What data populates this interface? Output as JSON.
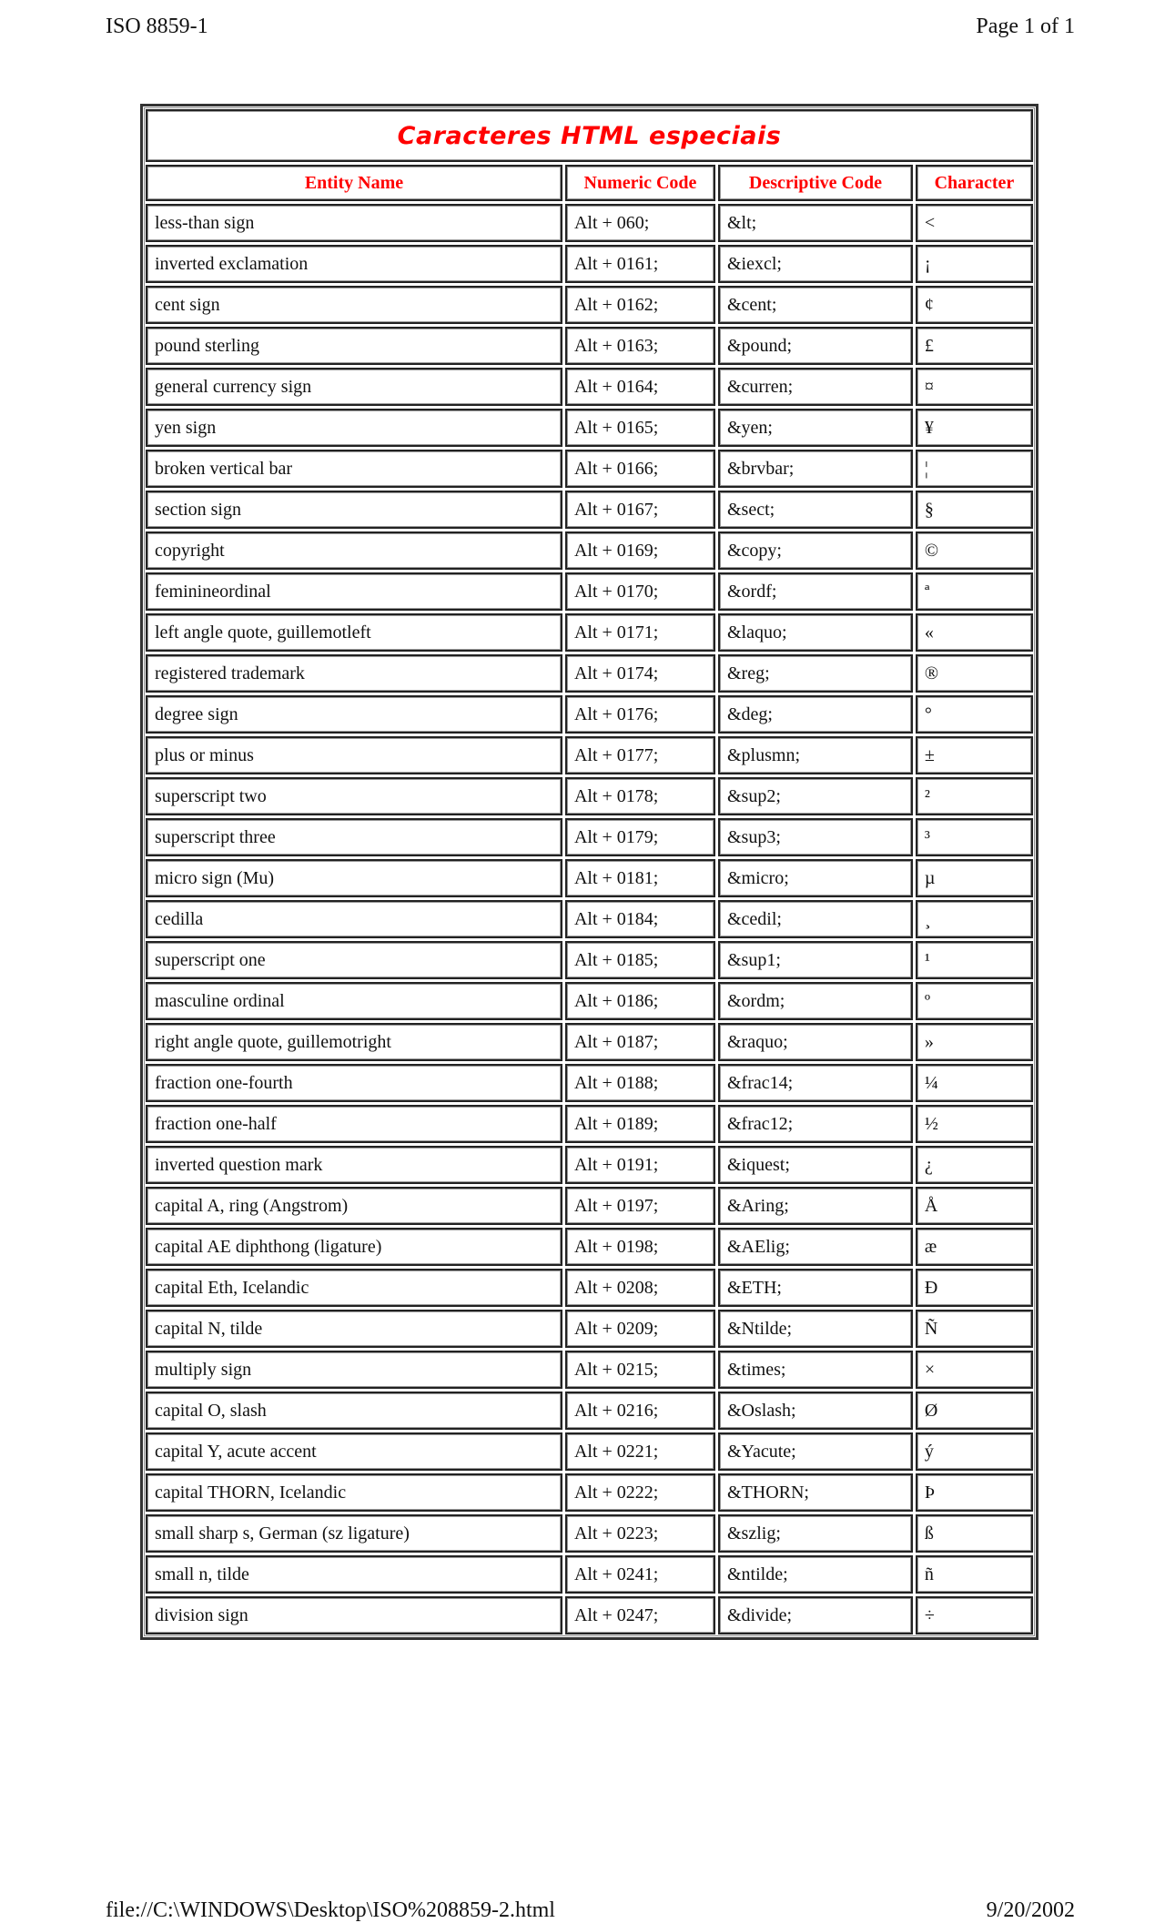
{
  "page_header": {
    "left": "ISO 8859-1",
    "right": "Page 1 of 1"
  },
  "page_footer": {
    "left": "file://C:\\WINDOWS\\Desktop\\ISO%208859-2.html",
    "right": "9/20/2002"
  },
  "table": {
    "title": "Caracteres HTML especiais",
    "title_color": "#ff0000",
    "headers": [
      "Entity Name",
      "Numeric Code",
      "Descriptive Code",
      "Character"
    ],
    "rows": [
      [
        "less-than sign",
        "Alt + 060;",
        "&lt;",
        "<"
      ],
      [
        "inverted exclamation",
        "Alt + 0161;",
        "&iexcl;",
        "¡"
      ],
      [
        "cent sign",
        "Alt + 0162;",
        "&cent;",
        "¢"
      ],
      [
        "pound sterling",
        "Alt + 0163;",
        "&pound;",
        "£"
      ],
      [
        "general currency sign",
        "Alt + 0164;",
        "&curren;",
        "¤"
      ],
      [
        "yen sign",
        "Alt + 0165;",
        "&yen;",
        "¥"
      ],
      [
        "broken vertical bar",
        "Alt + 0166;",
        "&brvbar;",
        "¦"
      ],
      [
        "section sign",
        "Alt + 0167;",
        "&sect;",
        "§"
      ],
      [
        "copyright",
        "Alt + 0169;",
        "&copy;",
        "©"
      ],
      [
        "feminineordinal",
        "Alt + 0170;",
        "&ordf;",
        "ª"
      ],
      [
        "left angle quote, guillemotleft",
        "Alt + 0171;",
        "&laquo;",
        "«"
      ],
      [
        "registered trademark",
        "Alt + 0174;",
        "&reg;",
        "®"
      ],
      [
        "degree sign",
        "Alt + 0176;",
        "&deg;",
        "°"
      ],
      [
        "plus or minus",
        "Alt + 0177;",
        "&plusmn;",
        "±"
      ],
      [
        "superscript two",
        "Alt + 0178;",
        "&sup2;",
        "²"
      ],
      [
        "superscript three",
        "Alt + 0179;",
        "&sup3;",
        "³"
      ],
      [
        "micro sign (Mu)",
        "Alt + 0181;",
        "&micro;",
        "µ"
      ],
      [
        "cedilla",
        "Alt + 0184;",
        "&cedil;",
        "¸"
      ],
      [
        "superscript one",
        "Alt + 0185;",
        "&sup1;",
        "¹"
      ],
      [
        "masculine ordinal",
        "Alt + 0186;",
        "&ordm;",
        "º"
      ],
      [
        "right angle quote, guillemotright",
        "Alt + 0187;",
        "&raquo;",
        "»"
      ],
      [
        "fraction one-fourth",
        "Alt + 0188;",
        "&frac14;",
        "¼"
      ],
      [
        "fraction one-half",
        "Alt + 0189;",
        "&frac12;",
        "½"
      ],
      [
        "inverted question mark",
        "Alt + 0191;",
        "&iquest;",
        "¿"
      ],
      [
        "capital A, ring (Angstrom)",
        "Alt + 0197;",
        "&Aring;",
        "Å"
      ],
      [
        "capital AE diphthong (ligature)",
        "Alt + 0198;",
        "&AElig;",
        "æ"
      ],
      [
        "capital Eth, Icelandic",
        "Alt + 0208;",
        "&ETH;",
        "Ð"
      ],
      [
        "capital N, tilde",
        "Alt + 0209;",
        "&Ntilde;",
        "Ñ"
      ],
      [
        "multiply sign",
        "Alt + 0215;",
        "&times;",
        "×"
      ],
      [
        "capital O, slash",
        "Alt + 0216;",
        "&Oslash;",
        "Ø"
      ],
      [
        "capital Y, acute accent",
        "Alt + 0221;",
        "&Yacute;",
        "ý"
      ],
      [
        "capital THORN, Icelandic",
        "Alt + 0222;",
        "&THORN;",
        "Þ"
      ],
      [
        "small sharp s, German (sz ligature)",
        "Alt + 0223;",
        "&szlig;",
        "ß"
      ],
      [
        "small n, tilde",
        "Alt + 0241;",
        "&ntilde;",
        "ñ"
      ],
      [
        "division sign",
        "Alt + 0247;",
        "&divide;",
        "÷"
      ]
    ]
  }
}
